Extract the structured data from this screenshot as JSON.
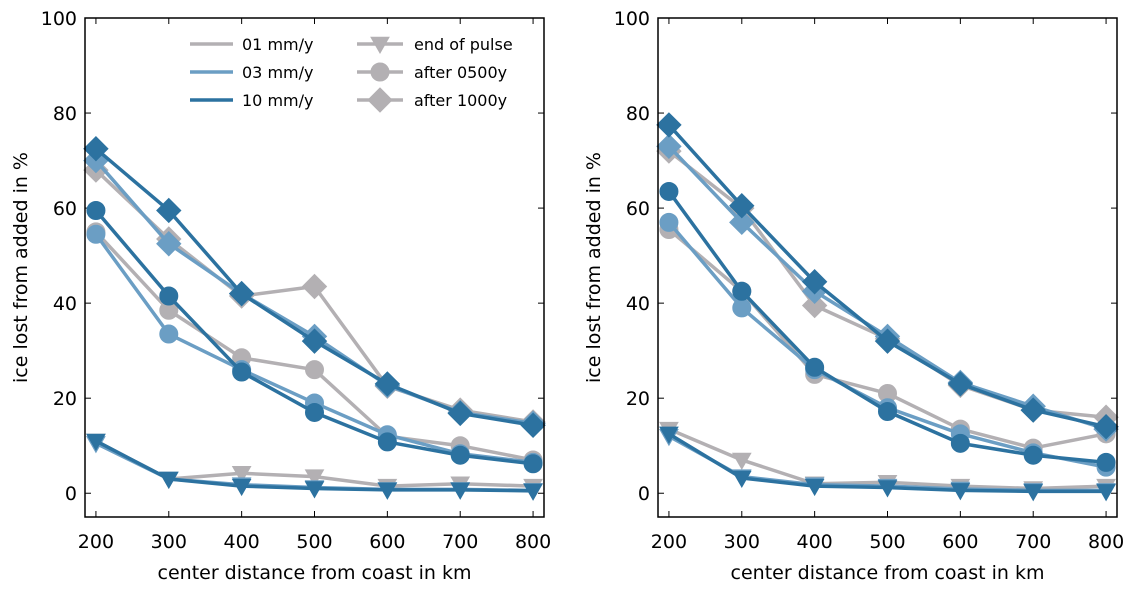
{
  "chart_data": [
    {
      "type": "line",
      "xlabel": "center distance from coast in km",
      "ylabel": "ice lost from added in %",
      "xlim": [
        185,
        815
      ],
      "ylim": [
        -5,
        100
      ],
      "xticks": [
        "200",
        "300",
        "400",
        "500",
        "600",
        "700",
        "800"
      ],
      "yticks": [
        "0",
        "20",
        "40",
        "60",
        "80",
        "100"
      ],
      "grid": false,
      "legend": {
        "placement": "top",
        "rate_entries": [
          {
            "label": "01 mm/y",
            "color": "#b3b0b3"
          },
          {
            "label": "03 mm/y",
            "color": "#6b9ec4"
          },
          {
            "label": "10 mm/y",
            "color": "#2c72a0"
          }
        ],
        "marker_entries": [
          {
            "label": "end of pulse",
            "marker": "triangle-down"
          },
          {
            "label": "after 0500y",
            "marker": "circle"
          },
          {
            "label": "after 1000y",
            "marker": "diamond"
          }
        ]
      },
      "x": [
        200,
        300,
        400,
        500,
        600,
        700,
        800
      ],
      "series": [
        {
          "rate": "01 mm/y",
          "marker": "triangle-down",
          "color": "#b3b0b3",
          "values": [
            11,
            3,
            4.2,
            3.5,
            1.5,
            2,
            1.5
          ]
        },
        {
          "rate": "03 mm/y",
          "marker": "triangle-down",
          "color": "#6b9ec4",
          "values": [
            10.5,
            3,
            1.8,
            1.2,
            0.8,
            0.8,
            0.6
          ]
        },
        {
          "rate": "10 mm/y",
          "marker": "triangle-down",
          "color": "#2c72a0",
          "values": [
            11,
            3,
            1.5,
            1.0,
            0.7,
            0.7,
            0.5
          ]
        },
        {
          "rate": "01 mm/y",
          "marker": "circle",
          "color": "#b3b0b3",
          "values": [
            55,
            38.5,
            28.5,
            26,
            12,
            10,
            7
          ]
        },
        {
          "rate": "03 mm/y",
          "marker": "circle",
          "color": "#6b9ec4",
          "values": [
            54.5,
            33.5,
            26,
            19,
            12.3,
            8.3,
            6.5
          ]
        },
        {
          "rate": "10 mm/y",
          "marker": "circle",
          "color": "#2c72a0",
          "values": [
            59.5,
            41.5,
            25.5,
            17,
            10.8,
            8,
            6.2
          ]
        },
        {
          "rate": "01 mm/y",
          "marker": "diamond",
          "color": "#b3b0b3",
          "values": [
            68,
            53.5,
            41.5,
            43.5,
            22.5,
            17.5,
            15
          ]
        },
        {
          "rate": "03 mm/y",
          "marker": "diamond",
          "color": "#6b9ec4",
          "values": [
            70,
            52.5,
            42,
            33,
            22.7,
            17,
            14.7
          ]
        },
        {
          "rate": "10 mm/y",
          "marker": "diamond",
          "color": "#2c72a0",
          "values": [
            72.5,
            59.5,
            42,
            32,
            23,
            16.8,
            14.3
          ]
        }
      ]
    },
    {
      "type": "line",
      "xlabel": "center distance from coast in km",
      "ylabel": "ice lost from added in %",
      "xlim": [
        185,
        815
      ],
      "ylim": [
        -5,
        100
      ],
      "xticks": [
        "200",
        "300",
        "400",
        "500",
        "600",
        "700",
        "800"
      ],
      "yticks": [
        "0",
        "20",
        "40",
        "60",
        "80",
        "100"
      ],
      "grid": false,
      "x": [
        200,
        300,
        400,
        500,
        600,
        700,
        800
      ],
      "series": [
        {
          "rate": "01 mm/y",
          "marker": "triangle-down",
          "color": "#b3b0b3",
          "values": [
            13.5,
            7,
            2,
            2.3,
            1.5,
            1,
            1.5
          ]
        },
        {
          "rate": "03 mm/y",
          "marker": "triangle-down",
          "color": "#6b9ec4",
          "values": [
            12,
            3.5,
            1.8,
            1.5,
            0.9,
            0.6,
            0.6
          ]
        },
        {
          "rate": "10 mm/y",
          "marker": "triangle-down",
          "color": "#2c72a0",
          "values": [
            12.5,
            3.2,
            1.5,
            1.2,
            0.6,
            0.4,
            0.4
          ]
        },
        {
          "rate": "01 mm/y",
          "marker": "circle",
          "color": "#b3b0b3",
          "values": [
            55.5,
            42.5,
            25,
            21,
            13.5,
            9.5,
            12.5
          ]
        },
        {
          "rate": "03 mm/y",
          "marker": "circle",
          "color": "#6b9ec4",
          "values": [
            57,
            39,
            26,
            18,
            12.5,
            8.5,
            5.5
          ]
        },
        {
          "rate": "10 mm/y",
          "marker": "circle",
          "color": "#2c72a0",
          "values": [
            63.5,
            42.5,
            26.5,
            17.2,
            10.5,
            8,
            6.5
          ]
        },
        {
          "rate": "01 mm/y",
          "marker": "diamond",
          "color": "#b3b0b3",
          "values": [
            72,
            60,
            39.5,
            32.5,
            22.7,
            17.5,
            16
          ]
        },
        {
          "rate": "03 mm/y",
          "marker": "diamond",
          "color": "#6b9ec4",
          "values": [
            73,
            57,
            42.5,
            33,
            23.3,
            18.3,
            13.5
          ]
        },
        {
          "rate": "10 mm/y",
          "marker": "diamond",
          "color": "#2c72a0",
          "values": [
            77.5,
            60.5,
            44.5,
            32,
            23,
            17.5,
            14
          ]
        }
      ]
    }
  ]
}
